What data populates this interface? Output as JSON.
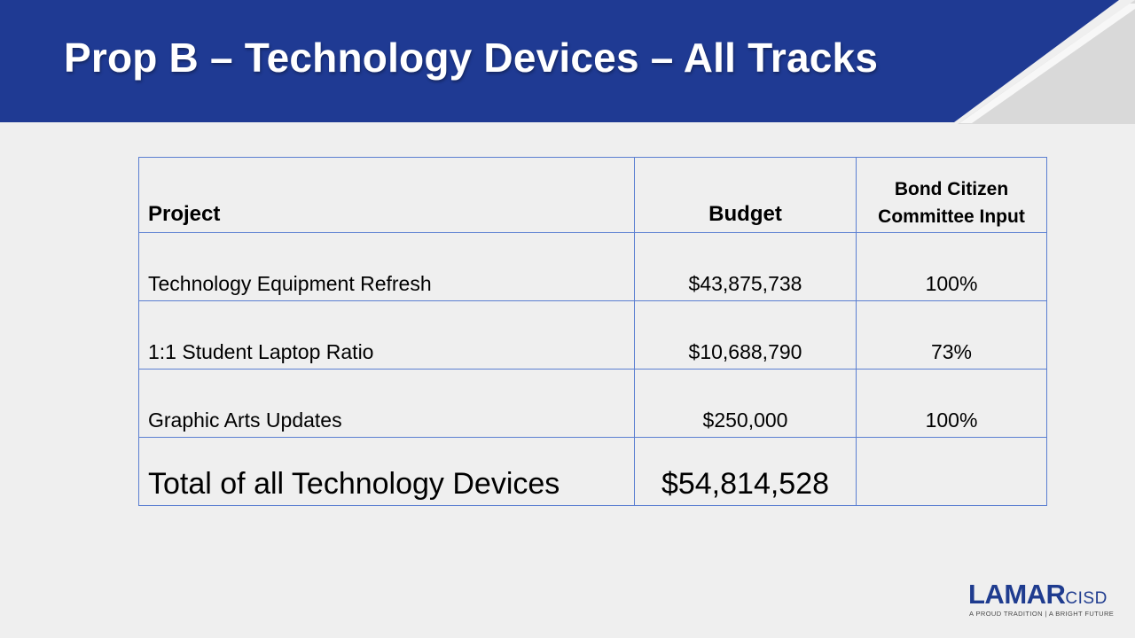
{
  "slide": {
    "title": "Prop B – Technology Devices – All Tracks"
  },
  "colors": {
    "header_blue": "#1f3a93",
    "header_corner_gray": "#d9d9d9",
    "table_border": "#5b7fd1",
    "logo_blue": "#1f3c8f"
  },
  "table": {
    "headers": {
      "project": "Project",
      "budget": "Budget",
      "input_line1": "Bond Citizen",
      "input_line2": "Committee Input"
    },
    "rows": [
      {
        "project": "Technology Equipment Refresh",
        "budget": "$43,875,738",
        "input": "100%"
      },
      {
        "project": "1:1 Student Laptop Ratio",
        "budget": "$10,688,790",
        "input": "73%"
      },
      {
        "project": "Graphic Arts Updates",
        "budget": "$250,000",
        "input": "100%"
      }
    ],
    "total": {
      "label": "Total of all Technology Devices",
      "budget": "$54,814,528",
      "input": ""
    }
  },
  "logo": {
    "word": "LAMAR",
    "suffix": "CISD",
    "tagline": "A PROUD TRADITION | A BRIGHT FUTURE"
  }
}
